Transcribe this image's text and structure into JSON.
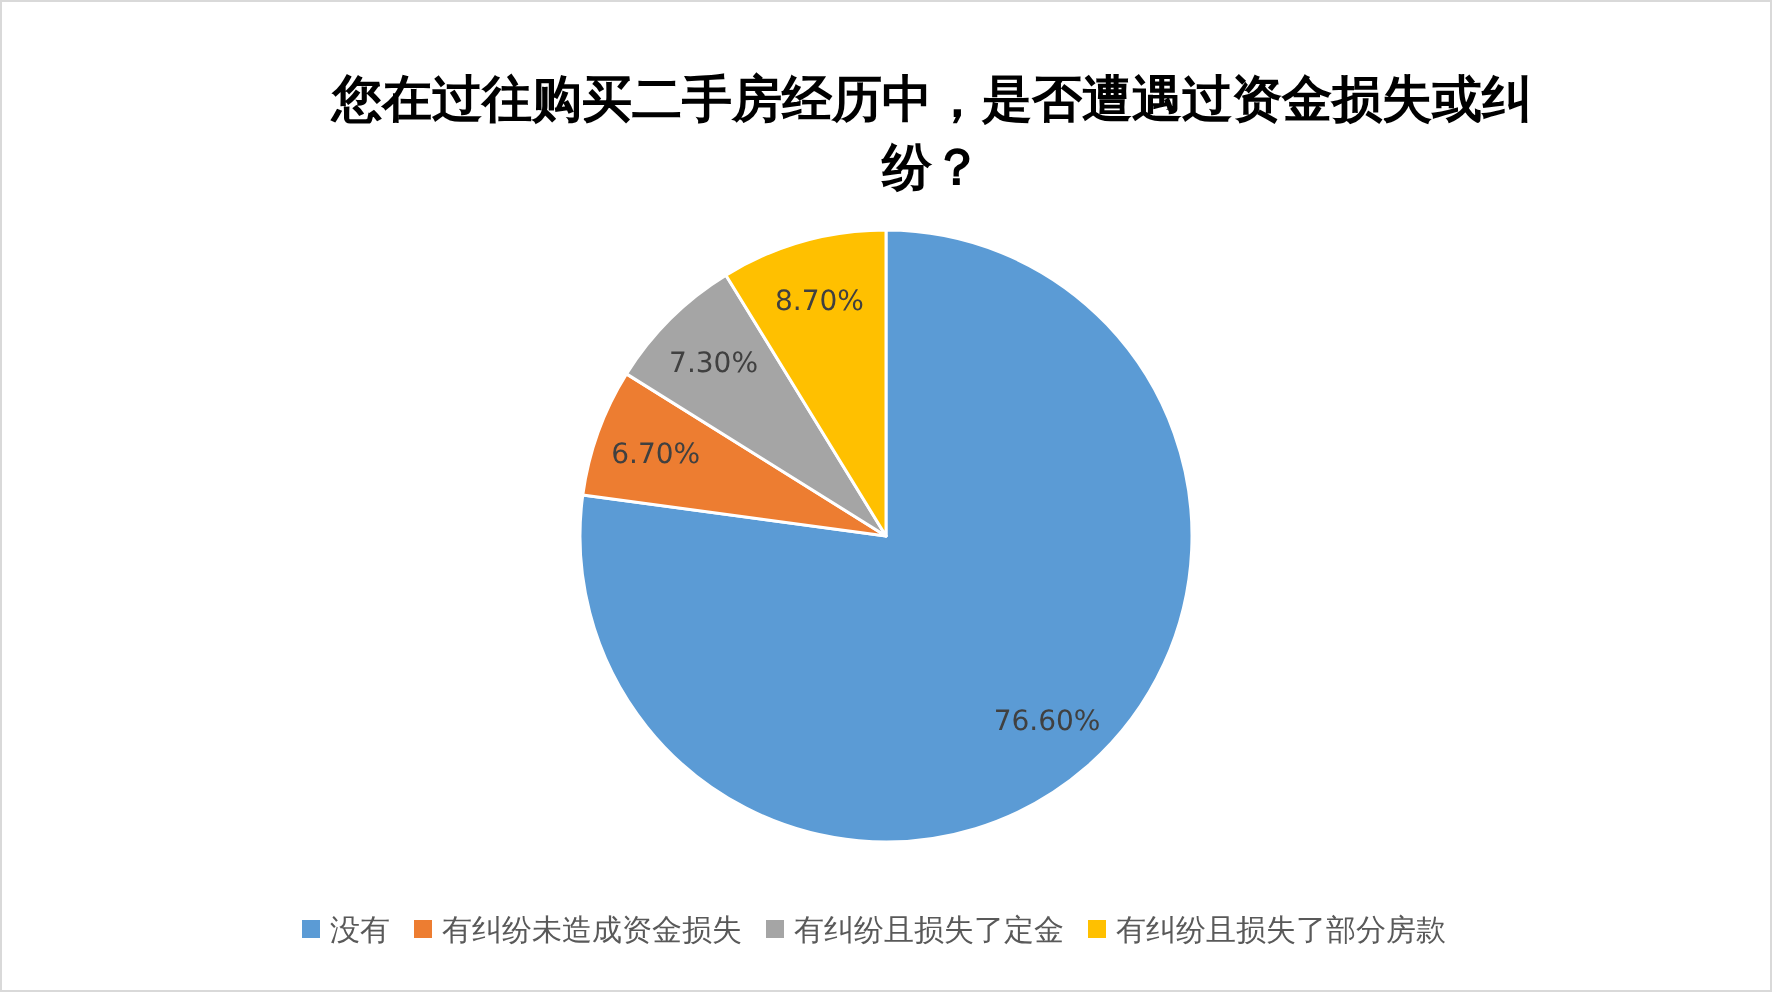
{
  "chart_data": {
    "type": "pie",
    "title": "您在过往购买二手房经历中，是否遭遇过资金损失或纠纷？",
    "categories": [
      "没有",
      "有纠纷未造成资金损失",
      "有纠纷且损失了定金",
      "有纠纷且损失了部分房款"
    ],
    "values": [
      76.6,
      6.7,
      7.3,
      8.7
    ],
    "value_labels": [
      "76.60%",
      "6.70%",
      "7.30%",
      "8.70%"
    ],
    "colors": [
      "#5b9bd5",
      "#ed7d31",
      "#a5a5a5",
      "#ffc000"
    ],
    "legend": "bottom"
  }
}
